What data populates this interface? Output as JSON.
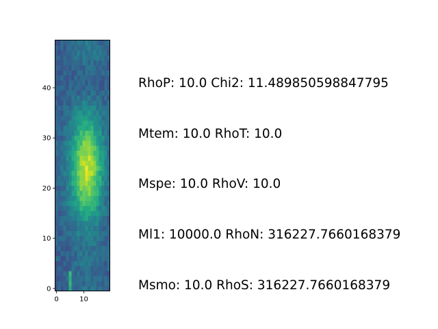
{
  "chart_data": {
    "type": "heatmap",
    "colormap": "viridis",
    "xlim": [
      0,
      19
    ],
    "ylim": [
      0,
      49
    ],
    "origin": "lower",
    "xticks": [
      0,
      10
    ],
    "yticks": [
      0,
      10,
      20,
      30,
      40
    ],
    "grid": false,
    "annotations": [
      "RhoP: 10.0 Chi2: 11.489850598847795",
      "Mtem: 10.0 RhoT: 10.0",
      "Mspe: 10.0 RhoV: 10.0",
      "Ml1: 10000.0 RhoN: 316227.7660168379",
      "Msmo: 10.0 RhoS: 316227.7660168379"
    ]
  }
}
